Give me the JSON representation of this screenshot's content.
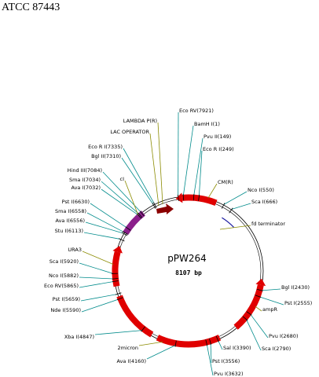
{
  "title": "ATCC 87443",
  "plasmid": {
    "name": "pPW264",
    "size": "8107 bp"
  },
  "labels": [
    "Eco RV(7921)",
    "BamH I(1)",
    "Pvu II(149)",
    "Eco R I(249)",
    "CM(R)",
    "Nco I(550)",
    "Sca I(666)",
    "fd terminator",
    "Bgl I(2430)",
    "Pst I(2555)",
    "ampR",
    "Pvu I(2680)",
    "Sca I(2790)",
    "Sal I(3390)",
    "Pst I(3556)",
    "Pvu I(3632)",
    "Ava I(4160)",
    "2micron",
    "Xba I(4847)",
    "Nde I(5590)",
    "Pst I(5659)",
    "Eco RV(5865)",
    "Nco I(5882)",
    "Sca I(5920)",
    "URA3",
    "Stu I(6113)",
    "Ava I(6556)",
    "Sma I(6558)",
    "Pst I(6630)",
    "Ava I(7032)",
    "Sma I(7034)",
    "Hind III(7084)",
    "cI",
    "Bgl II(7310)",
    "Eco R I(7335)",
    "LAC OPERATOR",
    "LAMBDA P(R)"
  ]
}
